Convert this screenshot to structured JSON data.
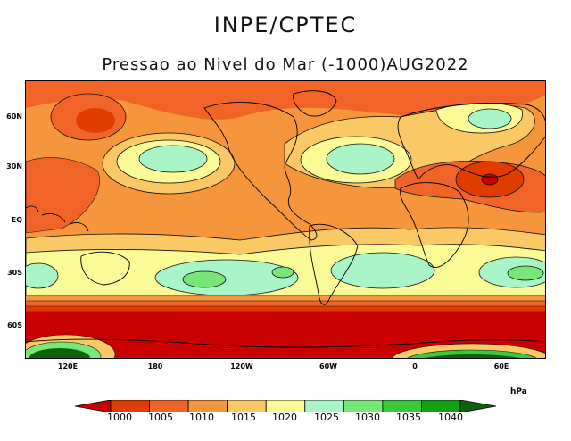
{
  "header": {
    "title": "INPE/CPTEC",
    "subtitle": "Pressao ao Nivel do Mar (-1000)AUG2022"
  },
  "axes": {
    "lat_labels": [
      "60N",
      "30N",
      "EQ",
      "30S",
      "60S"
    ],
    "lon_labels": [
      "120E",
      "180",
      "120W",
      "60W",
      "0",
      "60E"
    ]
  },
  "legend": {
    "unit": "hPa",
    "levels": [
      "1000",
      "1005",
      "1010",
      "1015",
      "1020",
      "1025",
      "1030",
      "1035",
      "1040"
    ],
    "colors": [
      "#c80000",
      "#e03c00",
      "#f06428",
      "#f5963c",
      "#fac864",
      "#fafa96",
      "#aaf5c8",
      "#78e678",
      "#3cc83c",
      "#14a014",
      "#0a640a"
    ]
  }
}
